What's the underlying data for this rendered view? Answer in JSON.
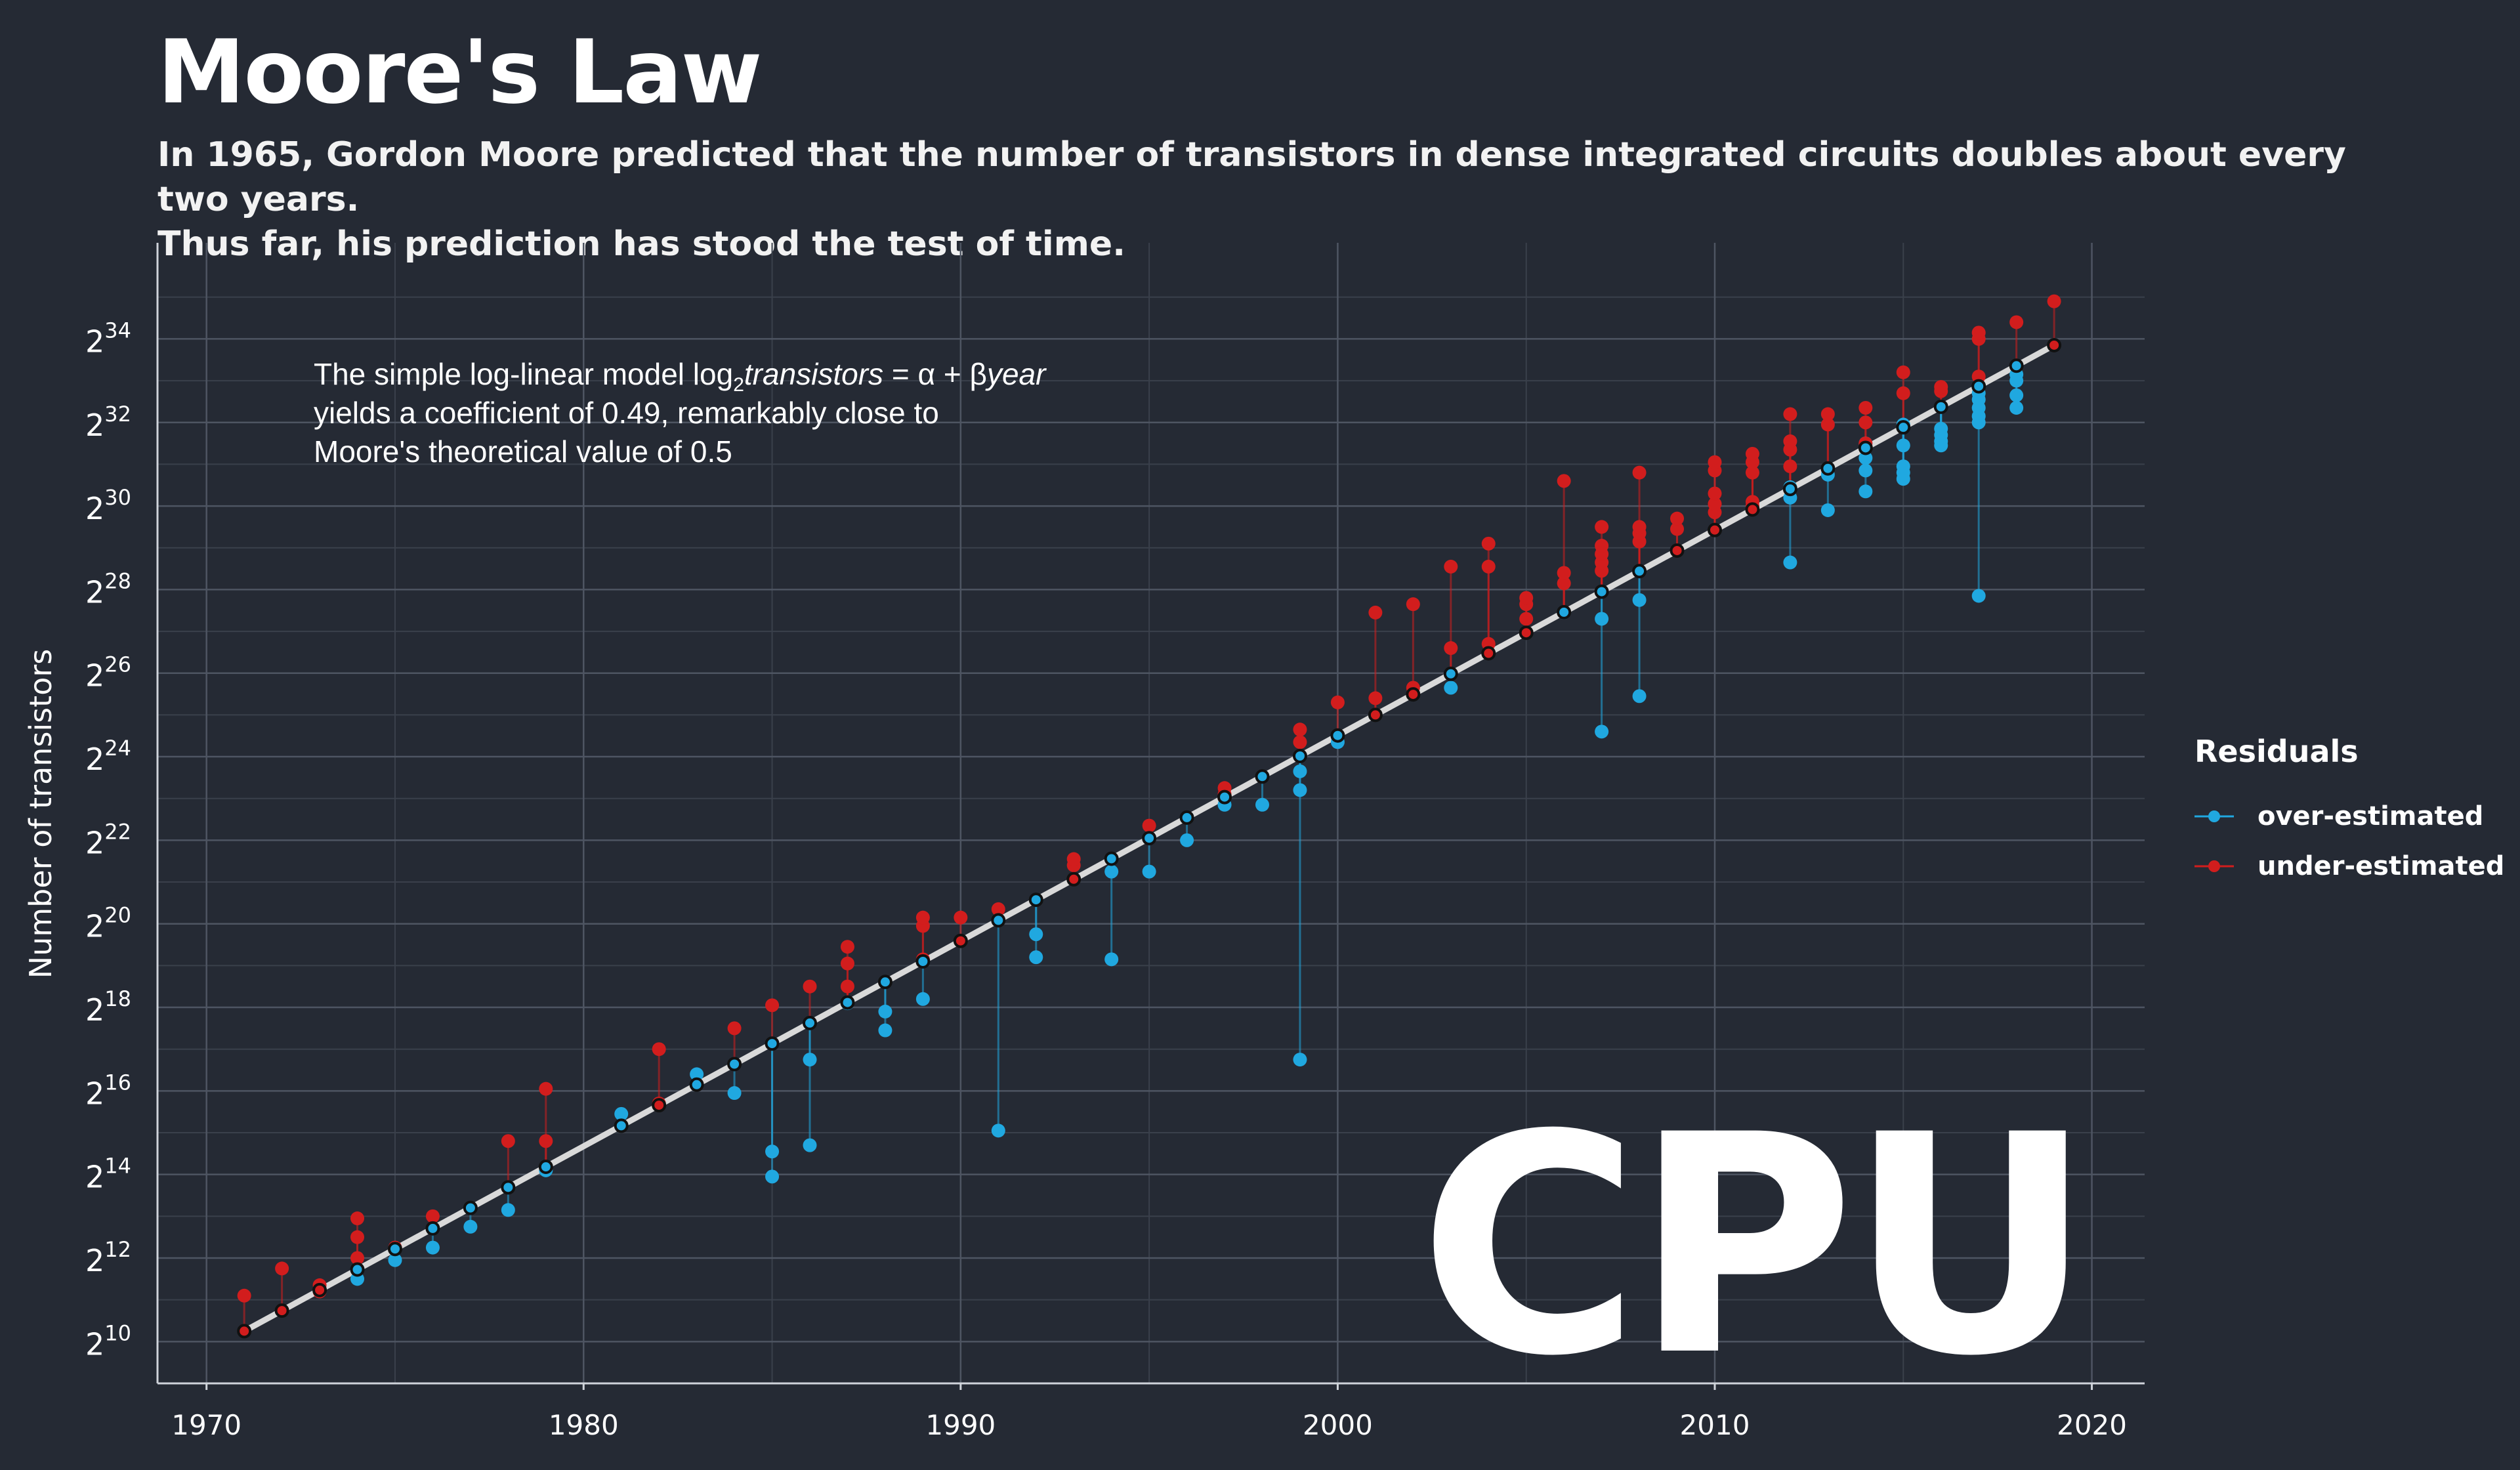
{
  "header": {
    "title": "Moore's Law",
    "subtitle_line1": "In 1965, Gordon Moore predicted that the number of transistors in dense integrated circuits doubles about every two years.",
    "subtitle_line2": "Thus far, his prediction has stood the test of time."
  },
  "annotation": {
    "line1_pre": "The simple log-linear model log",
    "line1_sub": "2",
    "line1_var": "transistors",
    "line1_mid": " = α + β",
    "line1_var2": "year",
    "line2": "yields a coefficient of 0.49, remarkably close to",
    "line3": "Moore's theoretical value of 0.5"
  },
  "watermark": "CPU",
  "colors": {
    "background": "#252a34",
    "over": "#20a8e0",
    "under": "#d21d1d",
    "fit_line": "#d9d9d9",
    "grid": "#4e5562"
  },
  "legend": {
    "title": "Residuals",
    "items": [
      {
        "label": "over-estimated",
        "color": "#20a8e0"
      },
      {
        "label": "under-estimated",
        "color": "#d21d1d"
      }
    ]
  },
  "chart_data": {
    "type": "scatter",
    "title": "Moore's Law",
    "xlabel": "",
    "ylabel": "Number of transistors",
    "y_scale": "log2",
    "xlim": [
      1968.7,
      2021.4
    ],
    "ylim_log2": [
      9.0,
      36.3
    ],
    "x_ticks": [
      1970,
      1980,
      1990,
      2000,
      2010,
      2020
    ],
    "y_tick_base": "2",
    "y_tick_exponents": [
      "10",
      "12",
      "14",
      "16",
      "18",
      "20",
      "22",
      "24",
      "26",
      "28",
      "30",
      "32",
      "34"
    ],
    "grid": true,
    "legend_position": "right",
    "fit": {
      "x": [
        1971,
        2019
      ],
      "log2_y": [
        10.25,
        33.85
      ],
      "coefficient": 0.49
    },
    "series": [
      {
        "name": "over-estimated",
        "points": [
          [
            1974,
            11.5
          ],
          [
            1975,
            11.95
          ],
          [
            1976,
            12.25
          ],
          [
            1976,
            12.7
          ],
          [
            1977,
            12.75
          ],
          [
            1978,
            13.15
          ],
          [
            1979,
            14.1
          ],
          [
            1981,
            15.45
          ],
          [
            1983,
            16.4
          ],
          [
            1984,
            15.95
          ],
          [
            1985,
            14.55
          ],
          [
            1985,
            13.95
          ],
          [
            1986,
            16.75
          ],
          [
            1986,
            14.7
          ],
          [
            1987,
            18.1
          ],
          [
            1988,
            17.9
          ],
          [
            1988,
            17.45
          ],
          [
            1989,
            18.2
          ],
          [
            1991,
            15.05
          ],
          [
            1992,
            19.75
          ],
          [
            1992,
            19.2
          ],
          [
            1994,
            21.25
          ],
          [
            1994,
            19.15
          ],
          [
            1995,
            21.25
          ],
          [
            1996,
            22.0
          ],
          [
            1997,
            22.85
          ],
          [
            1998,
            22.85
          ],
          [
            1999,
            23.65
          ],
          [
            1999,
            23.2
          ],
          [
            1999,
            16.75
          ],
          [
            2000,
            24.35
          ],
          [
            2003,
            25.65
          ],
          [
            2006,
            27.45
          ],
          [
            2007,
            27.95
          ],
          [
            2007,
            27.3
          ],
          [
            2007,
            24.6
          ],
          [
            2008,
            27.75
          ],
          [
            2008,
            25.45
          ],
          [
            2012,
            28.65
          ],
          [
            2012,
            30.2
          ],
          [
            2012,
            30.45
          ],
          [
            2013,
            29.9
          ],
          [
            2013,
            30.75
          ],
          [
            2014,
            30.85
          ],
          [
            2014,
            30.35
          ],
          [
            2014,
            31.15
          ],
          [
            2014,
            31.5
          ],
          [
            2015,
            30.65
          ],
          [
            2015,
            30.8
          ],
          [
            2015,
            30.95
          ],
          [
            2015,
            31.45
          ],
          [
            2015,
            31.95
          ],
          [
            2016,
            31.45
          ],
          [
            2016,
            31.55
          ],
          [
            2016,
            31.7
          ],
          [
            2016,
            31.85
          ],
          [
            2017,
            27.85
          ],
          [
            2017,
            32.0
          ],
          [
            2017,
            32.15
          ],
          [
            2017,
            32.35
          ],
          [
            2017,
            32.55
          ],
          [
            2017,
            32.7
          ],
          [
            2018,
            32.35
          ],
          [
            2018,
            32.65
          ],
          [
            2018,
            33.0
          ],
          [
            2018,
            33.15
          ]
        ]
      },
      {
        "name": "under-estimated",
        "points": [
          [
            1971,
            11.1
          ],
          [
            1972,
            11.75
          ],
          [
            1973,
            11.2
          ],
          [
            1973,
            11.35
          ],
          [
            1974,
            12.0
          ],
          [
            1974,
            12.5
          ],
          [
            1974,
            12.95
          ],
          [
            1975,
            12.25
          ],
          [
            1976,
            13.0
          ],
          [
            1978,
            14.8
          ],
          [
            1979,
            14.8
          ],
          [
            1979,
            16.05
          ],
          [
            1982,
            15.7
          ],
          [
            1982,
            17.0
          ],
          [
            1984,
            17.5
          ],
          [
            1985,
            18.05
          ],
          [
            1986,
            18.5
          ],
          [
            1987,
            18.5
          ],
          [
            1987,
            19.05
          ],
          [
            1987,
            19.45
          ],
          [
            1989,
            19.15
          ],
          [
            1989,
            19.95
          ],
          [
            1989,
            20.15
          ],
          [
            1990,
            20.15
          ],
          [
            1991,
            20.35
          ],
          [
            1993,
            21.4
          ],
          [
            1993,
            21.55
          ],
          [
            1995,
            22.35
          ],
          [
            1997,
            23.1
          ],
          [
            1997,
            23.25
          ],
          [
            1999,
            24.35
          ],
          [
            1999,
            24.65
          ],
          [
            2000,
            25.3
          ],
          [
            2001,
            25.4
          ],
          [
            2001,
            27.45
          ],
          [
            2002,
            25.65
          ],
          [
            2002,
            27.65
          ],
          [
            2003,
            26.6
          ],
          [
            2003,
            28.55
          ],
          [
            2004,
            26.7
          ],
          [
            2004,
            28.55
          ],
          [
            2004,
            29.1
          ],
          [
            2005,
            27.3
          ],
          [
            2005,
            27.65
          ],
          [
            2005,
            27.8
          ],
          [
            2006,
            28.15
          ],
          [
            2006,
            28.4
          ],
          [
            2006,
            30.6
          ],
          [
            2007,
            28.45
          ],
          [
            2007,
            28.65
          ],
          [
            2007,
            28.85
          ],
          [
            2007,
            29.05
          ],
          [
            2007,
            29.5
          ],
          [
            2008,
            29.15
          ],
          [
            2008,
            29.35
          ],
          [
            2008,
            29.5
          ],
          [
            2008,
            30.8
          ],
          [
            2009,
            29.45
          ],
          [
            2009,
            29.7
          ],
          [
            2010,
            29.85
          ],
          [
            2010,
            30.05
          ],
          [
            2010,
            30.3
          ],
          [
            2010,
            30.85
          ],
          [
            2010,
            31.05
          ],
          [
            2011,
            30.0
          ],
          [
            2011,
            30.1
          ],
          [
            2011,
            30.8
          ],
          [
            2011,
            31.05
          ],
          [
            2011,
            31.25
          ],
          [
            2012,
            30.95
          ],
          [
            2012,
            31.35
          ],
          [
            2012,
            31.55
          ],
          [
            2012,
            32.2
          ],
          [
            2013,
            31.95
          ],
          [
            2013,
            32.2
          ],
          [
            2014,
            31.5
          ],
          [
            2014,
            32.0
          ],
          [
            2014,
            32.35
          ],
          [
            2015,
            32.7
          ],
          [
            2015,
            33.2
          ],
          [
            2016,
            32.75
          ],
          [
            2016,
            32.85
          ],
          [
            2017,
            33.1
          ],
          [
            2017,
            34.0
          ],
          [
            2017,
            34.15
          ],
          [
            2018,
            34.4
          ],
          [
            2019,
            34.9
          ]
        ]
      }
    ]
  }
}
